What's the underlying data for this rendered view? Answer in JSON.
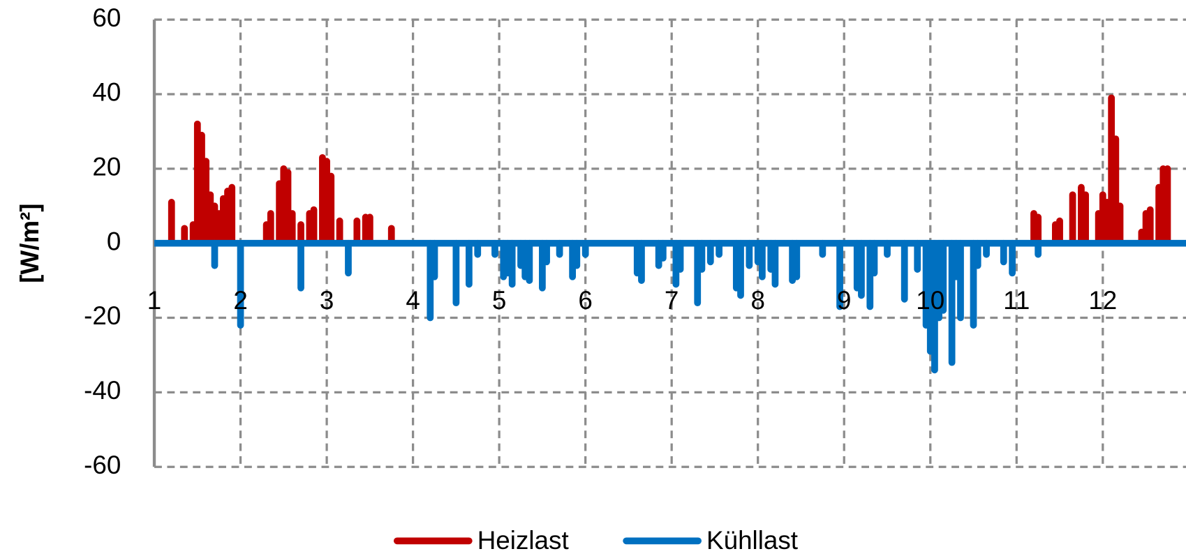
{
  "chart_data": {
    "type": "line",
    "ylabel": "[W/m²]",
    "xlim": [
      1,
      13
    ],
    "xticks": [
      1,
      2,
      3,
      4,
      5,
      6,
      7,
      8,
      9,
      10,
      11,
      12
    ],
    "ylim": [
      -60,
      60
    ],
    "yticks": [
      -60,
      -40,
      -20,
      0,
      20,
      40,
      60
    ],
    "grid": true,
    "legend": "bottom",
    "series": [
      {
        "name": "Heizlast",
        "color": "#c00000",
        "x": [
          1.2,
          1.35,
          1.45,
          1.5,
          1.55,
          1.6,
          1.65,
          1.7,
          1.75,
          1.8,
          1.85,
          1.9,
          2.3,
          2.35,
          2.45,
          2.5,
          2.55,
          2.6,
          2.7,
          2.8,
          2.85,
          2.95,
          3.0,
          3.05,
          3.15,
          3.35,
          3.45,
          3.5,
          3.75,
          11.2,
          11.25,
          11.45,
          11.5,
          11.65,
          11.75,
          11.8,
          11.95,
          12.0,
          12.05,
          12.1,
          12.15,
          12.2,
          12.45,
          12.5,
          12.55,
          12.65,
          12.7,
          12.75
        ],
        "values": [
          11,
          4,
          5,
          32,
          29,
          22,
          13,
          10,
          8,
          12,
          14,
          15,
          5,
          8,
          16,
          20,
          19,
          8,
          5,
          8,
          9,
          23,
          22,
          18,
          6,
          6,
          7,
          7,
          4,
          8,
          7,
          5,
          6,
          13,
          15,
          13,
          8,
          13,
          11,
          39,
          28,
          10,
          3,
          8,
          9,
          15,
          20,
          20
        ]
      },
      {
        "name": "Kühllast",
        "color": "#0070c0",
        "x": [
          1.7,
          2.0,
          2.7,
          3.25,
          4.2,
          4.25,
          4.5,
          4.65,
          4.75,
          4.95,
          5.05,
          5.1,
          5.15,
          5.25,
          5.3,
          5.35,
          5.5,
          5.55,
          5.7,
          5.85,
          5.9,
          6.0,
          6.6,
          6.65,
          6.85,
          6.9,
          7.05,
          7.1,
          7.3,
          7.35,
          7.45,
          7.55,
          7.75,
          7.8,
          7.9,
          8.0,
          8.05,
          8.15,
          8.2,
          8.4,
          8.45,
          8.75,
          8.95,
          9.15,
          9.2,
          9.3,
          9.35,
          9.5,
          9.7,
          9.85,
          9.95,
          10.0,
          10.05,
          10.1,
          10.15,
          10.25,
          10.3,
          10.35,
          10.5,
          10.55,
          10.65,
          10.85,
          10.95,
          11.25
        ],
        "values": [
          -6,
          -22,
          -12,
          -8,
          -20,
          -9,
          -16,
          -11,
          -3,
          -3,
          -9,
          -8,
          -11,
          -6,
          -9,
          -10,
          -12,
          -5,
          -3,
          -9,
          -6,
          -3,
          -8,
          -10,
          -6,
          -4,
          -11,
          -7,
          -16,
          -7,
          -5,
          -3,
          -12,
          -14,
          -6,
          -5,
          -9,
          -7,
          -11,
          -10,
          -9,
          -3,
          -17,
          -12,
          -14,
          -17,
          -8,
          -3,
          -15,
          -7,
          -22,
          -29,
          -34,
          -20,
          -18,
          -32,
          -9,
          -20,
          -22,
          -6,
          -3,
          -5,
          -8,
          -3
        ]
      }
    ]
  }
}
